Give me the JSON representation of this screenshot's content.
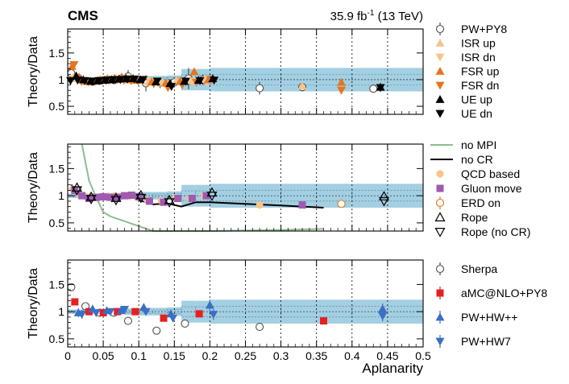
{
  "chart_data": {
    "type": "scatter",
    "title_left": "CMS",
    "title_right_pre": "35.9 fb",
    "title_right_sup": "-1",
    "title_right_post": " (13 TeV)",
    "xlabel": "Aplanarity",
    "ylabel": "Theory/Data",
    "xlim": [
      0,
      0.5
    ],
    "ylim": [
      0.35,
      1.95
    ],
    "xticks": [
      "0",
      "0.05",
      "0.1",
      "0.15",
      "0.2",
      "0.25",
      "0.3",
      "0.35",
      "0.4",
      "0.45",
      "0.5"
    ],
    "yticks": [
      "0.5",
      "1",
      "1.5"
    ],
    "bin_edges": [
      0,
      0.01,
      0.02,
      0.03,
      0.04,
      0.05,
      0.06,
      0.07,
      0.08,
      0.09,
      0.1,
      0.12,
      0.14,
      0.16,
      0.18,
      0.2,
      0.3,
      0.4,
      0.5
    ],
    "data_uncertainty": [
      0.04,
      0.04,
      0.04,
      0.04,
      0.04,
      0.05,
      0.05,
      0.05,
      0.06,
      0.06,
      0.07,
      0.07,
      0.08,
      0.2,
      0.2,
      0.22,
      0.22,
      0.22
    ],
    "panels": [
      {
        "id": "panel1",
        "legend": [
          {
            "label": "PW+PY8",
            "marker": "open-circle-err",
            "color": "#505050"
          },
          {
            "label": "ISR up",
            "marker": "tri-up",
            "color": "#f8c48a"
          },
          {
            "label": "ISR dn",
            "marker": "tri-down",
            "color": "#f8c48a"
          },
          {
            "label": "FSR up",
            "marker": "tri-up",
            "color": "#e5751f"
          },
          {
            "label": "FSR dn",
            "marker": "tri-down",
            "color": "#e5751f"
          },
          {
            "label": "UE up",
            "marker": "tri-up",
            "color": "#000000"
          },
          {
            "label": "UE dn",
            "marker": "tri-down",
            "color": "#000000"
          }
        ],
        "series": [
          {
            "name": "PW+PY8",
            "marker": "open-circle-err",
            "color": "#505050",
            "x": [
              0.005,
              0.015,
              0.025,
              0.035,
              0.045,
              0.055,
              0.065,
              0.075,
              0.085,
              0.095,
              0.11,
              0.13,
              0.15,
              0.17,
              0.19,
              0.27,
              0.33,
              0.43
            ],
            "y": [
              1.12,
              1.03,
              0.97,
              0.96,
              0.98,
              1.0,
              0.99,
              1.02,
              1.06,
              1.0,
              0.93,
              0.94,
              0.95,
              1.02,
              1.0,
              0.84,
              0.86,
              0.83
            ],
            "err": [
              0.14,
              0.04,
              0.04,
              0.04,
              0.04,
              0.04,
              0.05,
              0.05,
              0.12,
              0.05,
              0.15,
              0.1,
              0.1,
              0.2,
              0.1,
              0.12,
              0.08,
              0.05
            ]
          },
          {
            "name": "ISR up",
            "marker": "tri-up",
            "color": "#f8c48a",
            "x": [
              0.008,
              0.018,
              0.028,
              0.038,
              0.048,
              0.058,
              0.068,
              0.078,
              0.088,
              0.098,
              0.113,
              0.133,
              0.153,
              0.173,
              0.193,
              0.33
            ],
            "y": [
              1.05,
              1.0,
              0.96,
              0.98,
              0.99,
              1.0,
              1.02,
              1.03,
              1.04,
              1.0,
              0.95,
              0.94,
              0.98,
              0.98,
              1.02,
              0.88
            ]
          },
          {
            "name": "ISR dn",
            "marker": "tri-down",
            "color": "#f8c48a",
            "x": [
              0.01,
              0.02,
              0.03,
              0.04,
              0.05,
              0.06,
              0.07,
              0.08,
              0.09,
              0.1,
              0.116,
              0.136,
              0.156,
              0.176,
              0.196
            ],
            "y": [
              1.02,
              0.96,
              0.97,
              0.98,
              1.0,
              0.99,
              1.0,
              1.02,
              1.0,
              0.98,
              0.97,
              0.92,
              0.96,
              0.97,
              0.95
            ]
          },
          {
            "name": "FSR up",
            "marker": "tri-up",
            "color": "#e5751f",
            "x": [
              0.006,
              0.016,
              0.026,
              0.036,
              0.046,
              0.056,
              0.066,
              0.076,
              0.086,
              0.096,
              0.118,
              0.138,
              0.158,
              0.178,
              0.198,
              0.385
            ],
            "y": [
              1.25,
              1.05,
              0.98,
              0.97,
              1.0,
              1.02,
              1.03,
              1.05,
              1.0,
              0.99,
              0.96,
              0.94,
              0.97,
              1.15,
              1.0,
              0.95
            ]
          },
          {
            "name": "FSR dn",
            "marker": "tri-down",
            "color": "#e5751f",
            "x": [
              0.009,
              0.019,
              0.029,
              0.039,
              0.049,
              0.059,
              0.069,
              0.079,
              0.089,
              0.099,
              0.121,
              0.141,
              0.161,
              0.181,
              0.201,
              0.385
            ],
            "y": [
              1.28,
              0.97,
              0.96,
              0.97,
              0.98,
              0.99,
              1.0,
              0.99,
              0.98,
              0.97,
              0.92,
              0.85,
              0.9,
              0.95,
              1.0,
              0.8
            ]
          },
          {
            "name": "UE up",
            "marker": "tri-up",
            "color": "#000000",
            "x": [
              0.012,
              0.022,
              0.032,
              0.042,
              0.052,
              0.062,
              0.072,
              0.082,
              0.092,
              0.102,
              0.124,
              0.144,
              0.164,
              0.184,
              0.204,
              0.44
            ],
            "y": [
              1.07,
              1.0,
              0.97,
              0.98,
              0.99,
              1.0,
              1.01,
              1.02,
              1.02,
              1.0,
              0.96,
              0.93,
              0.97,
              0.99,
              1.02,
              0.86
            ]
          },
          {
            "name": "UE dn",
            "marker": "tri-down",
            "color": "#000000",
            "x": [
              0.004,
              0.014,
              0.024,
              0.034,
              0.044,
              0.054,
              0.064,
              0.074,
              0.084,
              0.094,
              0.106,
              0.126,
              0.146,
              0.166,
              0.186,
              0.206,
              0.44
            ],
            "y": [
              0.98,
              0.99,
              0.98,
              0.97,
              0.98,
              0.99,
              1.0,
              1.0,
              1.01,
              1.01,
              1.0,
              0.97,
              0.87,
              0.97,
              0.98,
              0.99,
              0.85
            ]
          }
        ]
      },
      {
        "id": "panel2",
        "legend": [
          {
            "label": "no MPI",
            "marker": "line",
            "color": "#8fbc8f"
          },
          {
            "label": "no CR",
            "marker": "line",
            "color": "#000000"
          },
          {
            "label": "QCD based",
            "marker": "hexagon",
            "color": "#f8c48a"
          },
          {
            "label": "Gluon move",
            "marker": "square",
            "color": "#9e5bb0"
          },
          {
            "label": "ERD on",
            "marker": "open-circle-err",
            "color": "#e5751f"
          },
          {
            "label": "Rope",
            "marker": "open-tri-up",
            "color": "#000000"
          },
          {
            "label": "Rope (no CR)",
            "marker": "open-tri-down",
            "color": "#000000"
          }
        ],
        "lines": [
          {
            "name": "no MPI",
            "color": "#8fbc8f",
            "x": [
              0.02,
              0.03,
              0.04,
              0.05,
              0.06,
              0.08,
              0.1,
              0.12,
              0.13,
              0.15,
              0.2,
              0.3,
              0.36
            ],
            "y": [
              1.95,
              1.28,
              0.97,
              0.7,
              0.62,
              0.53,
              0.44,
              0.35,
              0.31,
              0.32,
              0.34,
              0.37,
              0.39
            ]
          },
          {
            "name": "no CR",
            "color": "#000000",
            "x": [
              0.005,
              0.01,
              0.02,
              0.03,
              0.04,
              0.05,
              0.06,
              0.07,
              0.08,
              0.09,
              0.1,
              0.12,
              0.14,
              0.16,
              0.18,
              0.2,
              0.25,
              0.3,
              0.36
            ],
            "y": [
              1.2,
              1.15,
              1.0,
              0.95,
              0.96,
              0.97,
              0.96,
              0.93,
              1.0,
              0.98,
              0.92,
              0.84,
              0.86,
              0.8,
              0.88,
              0.88,
              0.85,
              0.82,
              0.78
            ]
          }
        ],
        "series": [
          {
            "name": "QCD based",
            "marker": "hexagon",
            "color": "#f8c48a",
            "x": [
              0.007,
              0.017,
              0.027,
              0.037,
              0.047,
              0.057,
              0.067,
              0.077,
              0.087,
              0.097,
              0.112,
              0.132,
              0.152,
              0.172,
              0.192,
              0.27
            ],
            "y": [
              1.12,
              1.02,
              0.97,
              0.98,
              0.98,
              0.99,
              1.0,
              1.0,
              0.99,
              0.98,
              0.92,
              0.9,
              0.96,
              0.95,
              1.0,
              0.83
            ]
          },
          {
            "name": "Gluon move",
            "marker": "square",
            "color": "#9e5bb0",
            "x": [
              0.01,
              0.02,
              0.03,
              0.04,
              0.05,
              0.06,
              0.07,
              0.08,
              0.09,
              0.1,
              0.115,
              0.135,
              0.155,
              0.175,
              0.195,
              0.33
            ],
            "y": [
              1.1,
              1.0,
              0.95,
              0.97,
              0.98,
              0.97,
              0.97,
              1.0,
              1.01,
              0.98,
              0.9,
              0.88,
              0.95,
              0.95,
              1.0,
              0.83
            ]
          },
          {
            "name": "ERD on",
            "marker": "open-circle-err",
            "color": "#e5751f",
            "x": [
              0.385
            ],
            "y": [
              0.85
            ],
            "err": [
              0.05
            ]
          },
          {
            "name": "Rope",
            "marker": "open-tri-up",
            "color": "#000000",
            "x": [
              0.013,
              0.033,
              0.068,
              0.103,
              0.143,
              0.203,
              0.445
            ],
            "y": [
              1.15,
              0.98,
              0.96,
              1.01,
              0.92,
              1.06,
              0.99
            ]
          },
          {
            "name": "Rope (no CR)",
            "marker": "open-tri-down",
            "color": "#000000",
            "x": [
              0.013,
              0.033,
              0.068,
              0.103,
              0.143,
              0.203,
              0.445
            ],
            "y": [
              1.1,
              0.94,
              0.92,
              0.96,
              0.88,
              1.0,
              0.9
            ]
          }
        ]
      },
      {
        "id": "panel3",
        "legend": [
          {
            "label": "Sherpa",
            "marker": "open-circle-err",
            "color": "#505050"
          },
          {
            "label": "aMC@NLO+PY8",
            "marker": "square-err",
            "color": "#e62020"
          },
          {
            "label": "PW+HW++",
            "marker": "tri-up-err",
            "color": "#3a6fc4"
          },
          {
            "label": "PW+HW7",
            "marker": "tri-down-err",
            "color": "#3a6fc4"
          }
        ],
        "series": [
          {
            "name": "Sherpa",
            "marker": "open-circle",
            "color": "#505050",
            "x": [
              0.005,
              0.025,
              0.045,
              0.065,
              0.085,
              0.125,
              0.165,
              0.27
            ],
            "y": [
              1.45,
              1.1,
              0.98,
              0.98,
              0.83,
              0.65,
              0.78,
              0.72
            ]
          },
          {
            "name": "aMC@NLO+PY8",
            "marker": "square-err",
            "color": "#e62020",
            "x": [
              0.01,
              0.03,
              0.05,
              0.07,
              0.095,
              0.135,
              0.185,
              0.36
            ],
            "y": [
              1.18,
              1.0,
              0.98,
              1.0,
              1.0,
              0.88,
              0.96,
              0.83
            ],
            "err": [
              0.04,
              0.04,
              0.04,
              0.04,
              0.05,
              0.06,
              0.05,
              0.05
            ]
          },
          {
            "name": "PW+HW++",
            "marker": "tri-up-err",
            "color": "#3a6fc4",
            "x": [
              0.015,
              0.035,
              0.055,
              0.075,
              0.107,
              0.145,
              0.2,
              0.443
            ],
            "y": [
              0.98,
              1.05,
              1.02,
              1.02,
              1.08,
              0.96,
              1.12,
              1.05
            ],
            "err": [
              0.08,
              0.05,
              0.04,
              0.04,
              0.06,
              0.07,
              0.1,
              0.1
            ]
          },
          {
            "name": "PW+HW7",
            "marker": "tri-down-err",
            "color": "#3a6fc4",
            "x": [
              0.02,
              0.04,
              0.06,
              0.08,
              0.11,
              0.148,
              0.205,
              0.443
            ],
            "y": [
              0.95,
              0.98,
              1.0,
              1.04,
              1.0,
              0.88,
              0.95,
              0.92
            ],
            "err": [
              0.08,
              0.05,
              0.04,
              0.04,
              0.06,
              0.07,
              0.1,
              0.1
            ]
          }
        ]
      }
    ]
  }
}
